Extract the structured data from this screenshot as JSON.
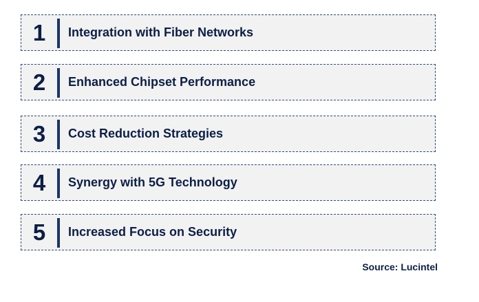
{
  "items": [
    {
      "number": "1",
      "label": "Integration with Fiber Networks"
    },
    {
      "number": "2",
      "label": "Enhanced Chipset Performance"
    },
    {
      "number": "3",
      "label": "Cost Reduction Strategies"
    },
    {
      "number": "4",
      "label": "Synergy with 5G Technology"
    },
    {
      "number": "5",
      "label": "Increased Focus on Security"
    }
  ],
  "source": "Source: Lucintel"
}
